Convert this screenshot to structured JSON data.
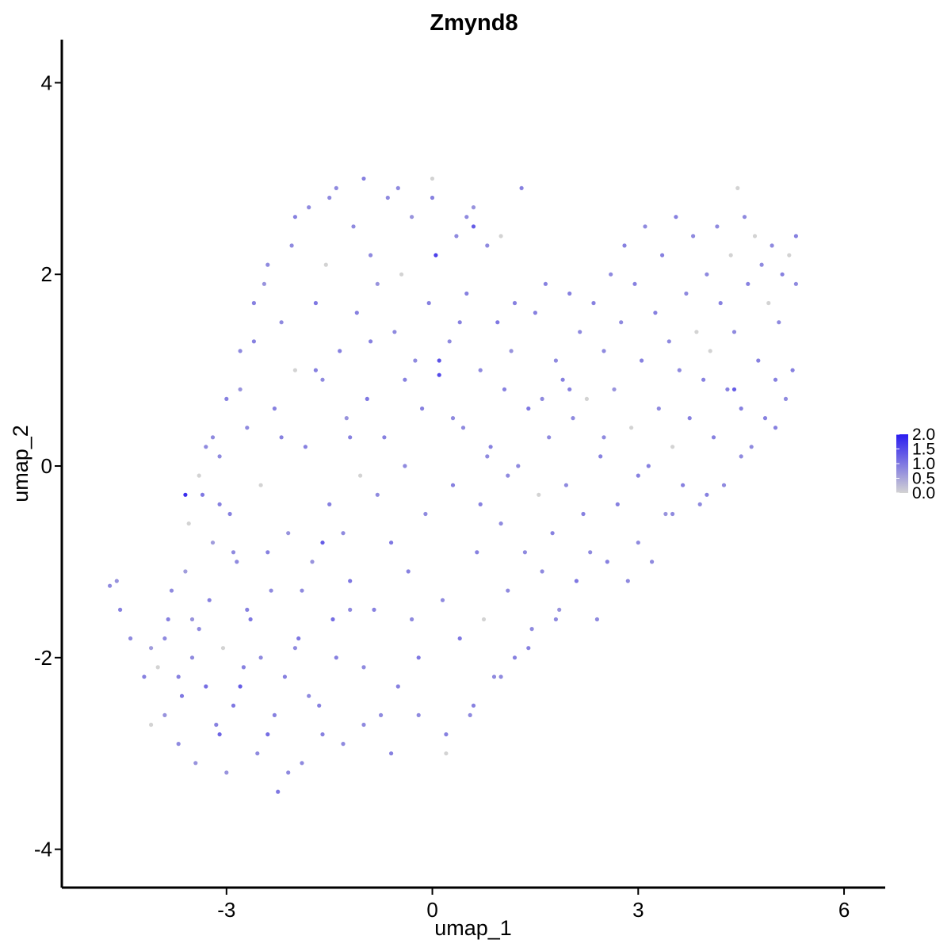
{
  "chart_data": {
    "type": "scatter",
    "title": "Zmynd8",
    "xlabel": "umap_1",
    "ylabel": "umap_2",
    "xlim": [
      -5.4,
      6.6
    ],
    "ylim": [
      -4.4,
      4.45
    ],
    "x_ticks": [
      {
        "value": -3,
        "label": "-3"
      },
      {
        "value": 0,
        "label": "0"
      },
      {
        "value": 3,
        "label": "3"
      },
      {
        "value": 6,
        "label": "6"
      }
    ],
    "y_ticks": [
      {
        "value": -4,
        "label": "-4"
      },
      {
        "value": -2,
        "label": "-2"
      },
      {
        "value": 0,
        "label": "0"
      },
      {
        "value": 2,
        "label": "2"
      },
      {
        "value": 4,
        "label": "4"
      }
    ],
    "grid": false,
    "color_scale": {
      "low_color": "#d3d3d3",
      "high_color": "#2a1cf0",
      "min": 0.0,
      "max": 2.0,
      "position": "right",
      "labels": [
        "2.0",
        "1.5",
        "1.0",
        "0.5",
        "0.0"
      ],
      "label_values": [
        2.0,
        1.5,
        1.0,
        0.5,
        0.0
      ]
    },
    "points": [
      [
        -4.7,
        -1.25,
        0.8
      ],
      [
        -4.6,
        -1.2,
        0.7
      ],
      [
        -4.55,
        -1.5,
        0.9
      ],
      [
        -4.4,
        -1.8,
        0.8
      ],
      [
        -4.2,
        -2.2,
        0.9
      ],
      [
        -4.1,
        -1.9,
        0.6
      ],
      [
        -4.0,
        -2.1,
        0.0
      ],
      [
        -3.9,
        -2.6,
        0.7
      ],
      [
        -3.85,
        -1.6,
        0.9
      ],
      [
        -3.8,
        -1.3,
        0.8
      ],
      [
        -3.7,
        -2.9,
        0.8
      ],
      [
        -3.65,
        -2.4,
        1.0
      ],
      [
        -3.6,
        -1.1,
        0.6
      ],
      [
        -3.55,
        -0.6,
        0.0
      ],
      [
        -3.5,
        -2.0,
        0.8
      ],
      [
        -3.45,
        -3.1,
        0.7
      ],
      [
        -3.4,
        -1.7,
        0.8
      ],
      [
        -3.35,
        -0.3,
        1.0
      ],
      [
        -3.3,
        -2.3,
        1.1
      ],
      [
        -3.25,
        -1.4,
        0.9
      ],
      [
        -3.2,
        -0.8,
        0.6
      ],
      [
        -3.15,
        -2.7,
        0.9
      ],
      [
        -3.1,
        0.1,
        0.8
      ],
      [
        -3.05,
        -1.9,
        0.0
      ],
      [
        -3.0,
        -3.2,
        0.7
      ],
      [
        -2.95,
        -0.5,
        0.9
      ],
      [
        -2.9,
        -2.5,
        1.0
      ],
      [
        -2.85,
        -1.0,
        0.8
      ],
      [
        -2.8,
        0.8,
        0.7
      ],
      [
        -2.75,
        -2.1,
        0.9
      ],
      [
        -2.7,
        0.4,
        0.8
      ],
      [
        -2.65,
        -1.6,
        1.0
      ],
      [
        -2.6,
        1.3,
        0.9
      ],
      [
        -2.55,
        -3.0,
        0.8
      ],
      [
        -2.5,
        -0.2,
        0.0
      ],
      [
        -2.45,
        1.9,
        0.7
      ],
      [
        -2.4,
        -2.8,
        1.1
      ],
      [
        -2.35,
        -1.3,
        0.8
      ],
      [
        -2.3,
        0.6,
        0.9
      ],
      [
        -2.25,
        -3.4,
        1.0
      ],
      [
        -2.2,
        1.5,
        0.8
      ],
      [
        -2.15,
        -2.2,
        0.9
      ],
      [
        -2.1,
        -0.7,
        0.7
      ],
      [
        -2.05,
        2.3,
        0.8
      ],
      [
        -2.0,
        1.0,
        0.0
      ],
      [
        -1.95,
        -1.8,
        1.0
      ],
      [
        -1.9,
        -3.1,
        0.8
      ],
      [
        -1.85,
        0.2,
        0.9
      ],
      [
        -1.8,
        2.7,
        0.8
      ],
      [
        -1.75,
        -1.0,
        0.7
      ],
      [
        -1.7,
        1.7,
        1.0
      ],
      [
        -1.65,
        -2.5,
        0.9
      ],
      [
        -1.6,
        0.9,
        0.8
      ],
      [
        -1.55,
        2.1,
        0.0
      ],
      [
        -1.5,
        -0.4,
        0.9
      ],
      [
        -1.45,
        -1.6,
        1.1
      ],
      [
        -1.4,
        2.9,
        0.8
      ],
      [
        -1.35,
        1.2,
        0.9
      ],
      [
        -1.3,
        -2.9,
        0.8
      ],
      [
        -1.25,
        0.5,
        0.7
      ],
      [
        -1.2,
        -1.2,
        1.0
      ],
      [
        -1.15,
        2.5,
        0.8
      ],
      [
        -1.1,
        1.6,
        0.9
      ],
      [
        -1.05,
        -0.1,
        0.0
      ],
      [
        -1.0,
        -2.1,
        0.8
      ],
      [
        -0.95,
        0.7,
        1.0
      ],
      [
        -0.9,
        2.2,
        0.8
      ],
      [
        -0.85,
        -1.5,
        0.9
      ],
      [
        -0.8,
        1.9,
        0.7
      ],
      [
        -0.75,
        -2.6,
        0.8
      ],
      [
        -0.7,
        0.3,
        0.9
      ],
      [
        -0.65,
        2.8,
        0.8
      ],
      [
        -0.6,
        -0.8,
        1.0
      ],
      [
        -0.55,
        1.4,
        0.8
      ],
      [
        -0.5,
        -2.3,
        0.9
      ],
      [
        -0.45,
        2.0,
        0.0
      ],
      [
        -0.4,
        0.0,
        0.8
      ],
      [
        -0.35,
        -1.1,
        0.9
      ],
      [
        -0.3,
        2.6,
        0.7
      ],
      [
        -0.25,
        1.1,
        0.8
      ],
      [
        -0.2,
        -2.0,
        1.0
      ],
      [
        -0.15,
        0.6,
        0.9
      ],
      [
        -0.1,
        -0.5,
        0.8
      ],
      [
        -0.05,
        1.7,
        0.9
      ],
      [
        0.0,
        3.0,
        0.0
      ],
      [
        0.05,
        2.2,
        1.6
      ],
      [
        0.1,
        0.95,
        1.5
      ],
      [
        0.15,
        -1.4,
        0.8
      ],
      [
        0.2,
        -2.8,
        0.9
      ],
      [
        0.25,
        1.3,
        0.8
      ],
      [
        0.3,
        -0.2,
        0.9
      ],
      [
        0.35,
        2.4,
        0.8
      ],
      [
        0.4,
        -1.8,
        1.0
      ],
      [
        0.45,
        0.4,
        0.8
      ],
      [
        0.5,
        1.8,
        0.9
      ],
      [
        0.55,
        -2.6,
        0.8
      ],
      [
        0.6,
        2.7,
        0.7
      ],
      [
        0.65,
        -0.9,
        0.9
      ],
      [
        0.7,
        1.0,
        0.8
      ],
      [
        0.75,
        -1.6,
        0.0
      ],
      [
        0.8,
        2.3,
        0.8
      ],
      [
        0.85,
        0.2,
        0.9
      ],
      [
        0.9,
        -2.2,
        0.8
      ],
      [
        0.95,
        1.5,
        1.0
      ],
      [
        1.0,
        -0.6,
        0.8
      ],
      [
        1.05,
        0.8,
        0.9
      ],
      [
        1.1,
        -1.3,
        0.8
      ],
      [
        1.15,
        1.2,
        0.7
      ],
      [
        1.2,
        -2.0,
        0.9
      ],
      [
        1.25,
        0.0,
        0.8
      ],
      [
        1.3,
        2.9,
        0.9
      ],
      [
        1.35,
        -0.9,
        0.8
      ],
      [
        1.4,
        0.6,
        1.0
      ],
      [
        1.45,
        -1.7,
        0.8
      ],
      [
        1.5,
        1.6,
        0.9
      ],
      [
        1.55,
        -0.3,
        0.0
      ],
      [
        1.6,
        -1.1,
        0.8
      ],
      [
        1.65,
        1.9,
        0.9
      ],
      [
        1.7,
        0.3,
        0.8
      ],
      [
        1.75,
        -0.7,
        0.9
      ],
      [
        1.8,
        1.1,
        0.8
      ],
      [
        1.85,
        -1.5,
        0.7
      ],
      [
        1.9,
        0.9,
        0.9
      ],
      [
        1.95,
        -0.2,
        0.8
      ],
      [
        2.0,
        1.8,
        0.9
      ],
      [
        2.05,
        0.5,
        0.8
      ],
      [
        2.1,
        -1.2,
        1.0
      ],
      [
        2.15,
        1.4,
        0.8
      ],
      [
        2.2,
        -0.5,
        0.9
      ],
      [
        2.25,
        0.7,
        0.0
      ],
      [
        2.3,
        -0.9,
        0.8
      ],
      [
        2.35,
        1.7,
        0.9
      ],
      [
        2.4,
        -1.6,
        0.8
      ],
      [
        2.45,
        0.1,
        0.9
      ],
      [
        2.5,
        1.2,
        0.8
      ],
      [
        2.55,
        -1.0,
        0.9
      ],
      [
        2.6,
        2.0,
        0.8
      ],
      [
        2.65,
        0.8,
        0.7
      ],
      [
        2.7,
        -0.4,
        0.9
      ],
      [
        2.75,
        1.5,
        0.8
      ],
      [
        2.8,
        2.3,
        0.9
      ],
      [
        2.85,
        -1.2,
        0.8
      ],
      [
        2.9,
        0.4,
        0.0
      ],
      [
        2.95,
        1.9,
        0.9
      ],
      [
        3.0,
        -0.8,
        0.8
      ],
      [
        3.05,
        1.1,
        0.9
      ],
      [
        3.1,
        2.5,
        0.8
      ],
      [
        3.15,
        0.0,
        0.9
      ],
      [
        3.2,
        -1.0,
        0.8
      ],
      [
        3.25,
        1.6,
        0.9
      ],
      [
        3.3,
        0.6,
        0.8
      ],
      [
        3.35,
        2.2,
        0.9
      ],
      [
        3.4,
        -0.5,
        0.7
      ],
      [
        3.45,
        1.3,
        0.8
      ],
      [
        3.5,
        0.2,
        0.0
      ],
      [
        3.55,
        2.6,
        0.9
      ],
      [
        3.6,
        1.0,
        0.8
      ],
      [
        3.65,
        -0.2,
        0.9
      ],
      [
        3.7,
        1.8,
        0.8
      ],
      [
        3.75,
        0.5,
        0.9
      ],
      [
        3.8,
        2.4,
        0.8
      ],
      [
        3.85,
        1.4,
        0.0
      ],
      [
        3.9,
        -0.4,
        0.8
      ],
      [
        3.95,
        0.9,
        0.9
      ],
      [
        4.0,
        2.0,
        0.8
      ],
      [
        4.05,
        1.2,
        0.0
      ],
      [
        4.1,
        0.3,
        0.9
      ],
      [
        4.15,
        2.5,
        0.8
      ],
      [
        4.2,
        1.7,
        0.9
      ],
      [
        4.25,
        -0.2,
        0.8
      ],
      [
        4.3,
        0.8,
        0.9
      ],
      [
        4.35,
        2.2,
        0.0
      ],
      [
        4.4,
        1.4,
        0.8
      ],
      [
        4.45,
        2.9,
        0.0
      ],
      [
        4.5,
        0.6,
        0.9
      ],
      [
        4.55,
        2.6,
        0.8
      ],
      [
        4.6,
        1.9,
        0.9
      ],
      [
        4.65,
        0.2,
        0.8
      ],
      [
        4.7,
        2.4,
        0.0
      ],
      [
        4.75,
        1.1,
        0.9
      ],
      [
        4.8,
        2.1,
        0.8
      ],
      [
        4.85,
        0.5,
        0.9
      ],
      [
        4.9,
        1.7,
        0.0
      ],
      [
        4.95,
        2.3,
        0.8
      ],
      [
        5.0,
        0.9,
        0.9
      ],
      [
        5.05,
        1.5,
        0.8
      ],
      [
        5.1,
        2.0,
        0.9
      ],
      [
        5.15,
        0.7,
        0.8
      ],
      [
        5.2,
        2.2,
        0.0
      ],
      [
        5.25,
        1.0,
        0.9
      ],
      [
        5.3,
        1.9,
        0.8
      ],
      [
        5.3,
        2.4,
        0.9
      ],
      [
        -3.6,
        -0.3,
        1.8
      ],
      [
        -2.8,
        -2.3,
        1.3
      ],
      [
        0.6,
        2.5,
        1.3
      ],
      [
        0.1,
        1.1,
        1.4
      ],
      [
        4.4,
        0.8,
        1.3
      ],
      [
        -1.6,
        -0.8,
        1.3
      ],
      [
        -3.1,
        -2.8,
        1.2
      ],
      [
        -2.1,
        -3.2,
        0.8
      ],
      [
        -2.3,
        -2.6,
        0.9
      ],
      [
        -2.5,
        -2.0,
        0.8
      ],
      [
        -2.7,
        -1.5,
        0.9
      ],
      [
        -2.9,
        -0.9,
        0.8
      ],
      [
        -3.1,
        -0.4,
        0.9
      ],
      [
        -3.3,
        0.2,
        0.8
      ],
      [
        -3.5,
        -1.6,
        0.7
      ],
      [
        -3.7,
        -2.2,
        0.9
      ],
      [
        -3.9,
        -1.8,
        0.8
      ],
      [
        -4.1,
        -2.7,
        0.0
      ],
      [
        -1.8,
        -2.4,
        0.8
      ],
      [
        -1.4,
        -2.0,
        0.9
      ],
      [
        -1.0,
        -2.7,
        0.8
      ],
      [
        -0.6,
        -3.0,
        0.9
      ],
      [
        -0.2,
        -2.6,
        0.8
      ],
      [
        0.2,
        -3.0,
        0.0
      ],
      [
        0.6,
        -2.5,
        0.9
      ],
      [
        1.0,
        -2.2,
        0.8
      ],
      [
        1.4,
        -1.9,
        0.9
      ],
      [
        1.8,
        -1.6,
        0.8
      ],
      [
        -1.5,
        2.8,
        0.8
      ],
      [
        -1.0,
        3.0,
        0.9
      ],
      [
        -0.5,
        2.9,
        0.8
      ],
      [
        0.0,
        2.8,
        0.9
      ],
      [
        0.5,
        2.6,
        0.8
      ],
      [
        1.0,
        2.4,
        0.0
      ],
      [
        -2.0,
        2.6,
        0.9
      ],
      [
        -2.4,
        2.1,
        0.8
      ],
      [
        -2.6,
        1.7,
        0.9
      ],
      [
        -2.8,
        1.2,
        0.8
      ],
      [
        -3.0,
        0.7,
        0.9
      ],
      [
        -3.2,
        0.3,
        0.8
      ],
      [
        -3.4,
        -0.1,
        0.0
      ],
      [
        2.0,
        0.8,
        0.9
      ],
      [
        2.5,
        0.3,
        0.8
      ],
      [
        3.0,
        -0.1,
        0.9
      ],
      [
        3.5,
        -0.5,
        0.8
      ],
      [
        4.0,
        -0.3,
        0.9
      ],
      [
        4.5,
        0.1,
        0.8
      ],
      [
        5.0,
        0.4,
        0.9
      ],
      [
        -1.2,
        0.3,
        0.9
      ],
      [
        -0.8,
        -0.3,
        0.8
      ],
      [
        -0.4,
        0.9,
        0.9
      ],
      [
        0.3,
        0.5,
        0.8
      ],
      [
        0.7,
        -0.4,
        0.9
      ],
      [
        1.1,
        -0.1,
        0.8
      ],
      [
        -1.7,
        1.0,
        0.9
      ],
      [
        -1.3,
        -0.7,
        0.8
      ],
      [
        -0.9,
        1.3,
        0.9
      ],
      [
        -0.3,
        -1.6,
        0.8
      ],
      [
        0.4,
        1.5,
        0.9
      ],
      [
        0.8,
        0.1,
        0.8
      ],
      [
        1.2,
        1.7,
        0.9
      ],
      [
        1.6,
        0.7,
        0.8
      ],
      [
        -2.2,
        0.3,
        0.9
      ],
      [
        -1.9,
        -1.3,
        0.8
      ],
      [
        -2.4,
        -0.9,
        0.9
      ],
      [
        -2.0,
        -1.9,
        0.8
      ],
      [
        -1.6,
        -2.8,
        0.9
      ],
      [
        -1.2,
        -1.5,
        0.8
      ]
    ]
  }
}
